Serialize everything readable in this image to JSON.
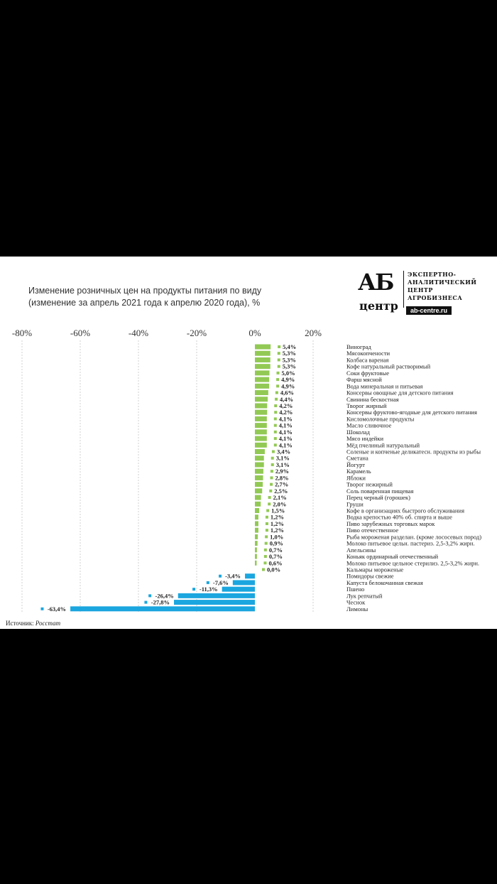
{
  "title_line1": "Изменение розничных цен на продукты питания по виду",
  "title_line2": "(изменение за апрель 2021 года к апрелю 2020 года), %",
  "logo": {
    "big": "АБ",
    "small": "центр",
    "lines": [
      "ЭКСПЕРТНО-",
      "АНАЛИТИЧЕСКИЙ",
      "ЦЕНТР",
      "АГРОБИЗНЕСА"
    ],
    "url": "ab-centre.ru"
  },
  "source_label": "Источник:",
  "source_value": "Росстат",
  "colors": {
    "positive": "#92c954",
    "negative": "#1ba6df"
  },
  "chart_data": {
    "type": "bar",
    "orientation": "horizontal",
    "title": "Изменение розничных цен на продукты питания по виду (изменение за апрель 2021 года к апрелю 2020 года), %",
    "xlim": [
      -80,
      20
    ],
    "xticks": [
      -80,
      -60,
      -40,
      -20,
      0,
      20
    ],
    "xtick_labels": [
      "-80%",
      "-60%",
      "-40%",
      "-20%",
      "0%",
      "20%"
    ],
    "grid": true,
    "categories": [
      "Виноград",
      "Мясокопчености",
      "Колбаса вареная",
      "Кофе натуральный растворимый",
      "Соки фруктовые",
      "Фарш мясной",
      "Вода минеральная и питьевая",
      "Консервы овощные для детского питания",
      "Свинина бескостная",
      "Творог жирный",
      "Консервы фруктово-ягодные для детского питания",
      "Кисломолочные продукты",
      "Масло сливочное",
      "Шоколад",
      "Мясо индейки",
      "Мёд пчелиный натуральный",
      "Соленые и копченые деликатесн. продукты из рыбы",
      "Сметана",
      "Йогурт",
      "Карамель",
      "Яблоки",
      "Творог нежирный",
      "Соль поваренная пищевая",
      "Перец черный (горошек)",
      "Груши",
      "Кофе в организациях быстрого обслуживания",
      "Водка крепостью 40% об. спирта и выше",
      "Пиво зарубежных торговых марок",
      "Пиво отечественное",
      "Рыба мороженая разделан. (кроме лососевых пород)",
      "Молоко питьевое цельн. пастериз. 2,5-3,2% жирн.",
      "Апельсины",
      "Коньяк ординарный отечественный",
      "Молоко питьевое цельное стерилиз. 2,5-3,2% жирн.",
      "Кальмары мороженые",
      "Помидоры свежие",
      "Капуста белокочанная свежая",
      "Пшено",
      "Лук репчатый",
      "Чеснок",
      "Лимоны"
    ],
    "values": [
      5.4,
      5.3,
      5.3,
      5.3,
      5.0,
      4.9,
      4.9,
      4.6,
      4.4,
      4.2,
      4.2,
      4.1,
      4.1,
      4.1,
      4.1,
      4.1,
      3.4,
      3.1,
      3.1,
      2.9,
      2.8,
      2.7,
      2.5,
      2.1,
      2.0,
      1.5,
      1.2,
      1.2,
      1.2,
      1.0,
      0.9,
      0.7,
      0.7,
      0.6,
      0.0,
      -3.4,
      -7.6,
      -11.3,
      -26.4,
      -27.8,
      -63.4
    ],
    "value_labels": [
      "5,4%",
      "5,3%",
      "5,3%",
      "5,3%",
      "5,0%",
      "4,9%",
      "4,9%",
      "4,6%",
      "4,4%",
      "4,2%",
      "4,2%",
      "4,1%",
      "4,1%",
      "4,1%",
      "4,1%",
      "4,1%",
      "3,4%",
      "3,1%",
      "3,1%",
      "2,9%",
      "2,8%",
      "2,7%",
      "2,5%",
      "2,1%",
      "2,0%",
      "1,5%",
      "1,2%",
      "1,2%",
      "1,2%",
      "1,0%",
      "0,9%",
      "0,7%",
      "0,7%",
      "0,6%",
      "0,0%",
      "-3,4%",
      "-7,6%",
      "-11,3%",
      "-26,4%",
      "-27,8%",
      "-63,4%"
    ]
  }
}
